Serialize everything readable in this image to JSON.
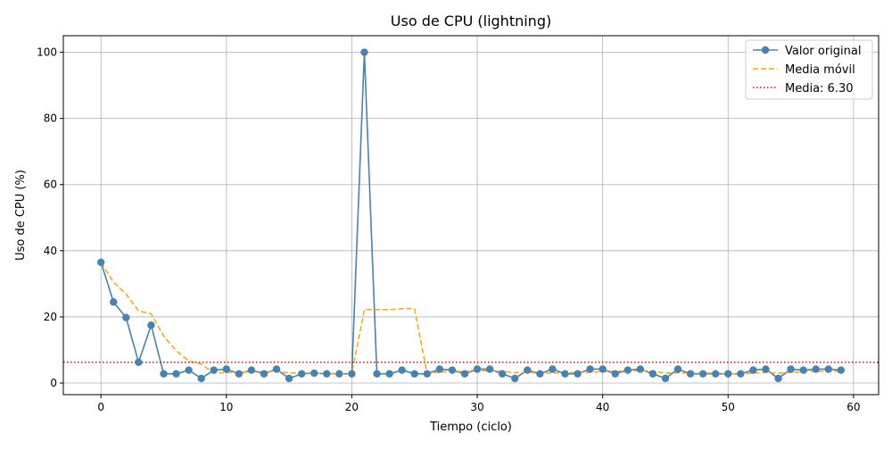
{
  "chart_data": {
    "type": "line",
    "title": "Uso de CPU (lightning)",
    "xlabel": "Tiempo (ciclo)",
    "ylabel": "Uso de CPU (%)",
    "xlim": [
      -3,
      62
    ],
    "ylim": [
      -3.5,
      105
    ],
    "xticks": [
      0,
      10,
      20,
      30,
      40,
      50,
      60
    ],
    "yticks": [
      0,
      20,
      40,
      60,
      80,
      100
    ],
    "grid": true,
    "legend_position": "top-right",
    "x": [
      0,
      1,
      2,
      3,
      4,
      5,
      6,
      7,
      8,
      9,
      10,
      11,
      12,
      13,
      14,
      15,
      16,
      17,
      18,
      19,
      20,
      21,
      22,
      23,
      24,
      25,
      26,
      27,
      28,
      29,
      30,
      31,
      32,
      33,
      34,
      35,
      36,
      37,
      38,
      39,
      40,
      41,
      42,
      43,
      44,
      45,
      46,
      47,
      48,
      49,
      50,
      51,
      52,
      53,
      54,
      55,
      56,
      57,
      58,
      59
    ],
    "series": [
      {
        "name": "Valor original",
        "color": "#4682b4",
        "style": "solid-markers",
        "values": [
          36.5,
          24.5,
          19.8,
          6.3,
          17.5,
          2.8,
          2.8,
          3.9,
          1.4,
          3.9,
          4.2,
          2.8,
          3.9,
          2.8,
          4.2,
          1.4,
          2.8,
          3.0,
          2.8,
          2.8,
          2.8,
          100,
          2.8,
          2.8,
          3.9,
          2.8,
          2.8,
          4.2,
          3.9,
          2.8,
          4.2,
          4.2,
          2.8,
          1.4,
          3.9,
          2.8,
          4.2,
          2.8,
          2.8,
          4.2,
          4.2,
          2.8,
          3.9,
          4.2,
          2.8,
          1.4,
          4.2,
          2.8,
          2.8,
          2.8,
          2.8,
          2.8,
          3.9,
          4.2,
          1.4,
          4.2,
          3.9,
          4.2,
          4.2,
          3.9
        ]
      },
      {
        "name": "Media móvil",
        "color": "#ffa500",
        "style": "dashed",
        "values": [
          36.5,
          30.5,
          26.9,
          21.8,
          20.9,
          14.2,
          9.8,
          6.7,
          5.7,
          3.0,
          3.2,
          3.2,
          3.4,
          3.5,
          3.5,
          3.0,
          3.0,
          3.0,
          2.8,
          2.8,
          2.8,
          22.2,
          22.2,
          22.2,
          22.5,
          22.5,
          3.0,
          3.3,
          3.5,
          3.5,
          3.6,
          3.8,
          3.6,
          3.1,
          3.3,
          3.0,
          3.0,
          3.1,
          3.2,
          3.2,
          3.5,
          3.6,
          3.6,
          3.8,
          3.6,
          3.0,
          3.1,
          3.0,
          3.0,
          3.0,
          2.8,
          2.8,
          3.0,
          3.2,
          3.0,
          3.2,
          3.3,
          3.6,
          3.6,
          3.6
        ]
      }
    ],
    "reference_line": {
      "name": "Media: 6.30",
      "value": 6.3,
      "color": "#ff0000",
      "style": "dotted"
    },
    "legend": [
      "Valor original",
      "Media móvil",
      "Media: 6.30"
    ]
  }
}
